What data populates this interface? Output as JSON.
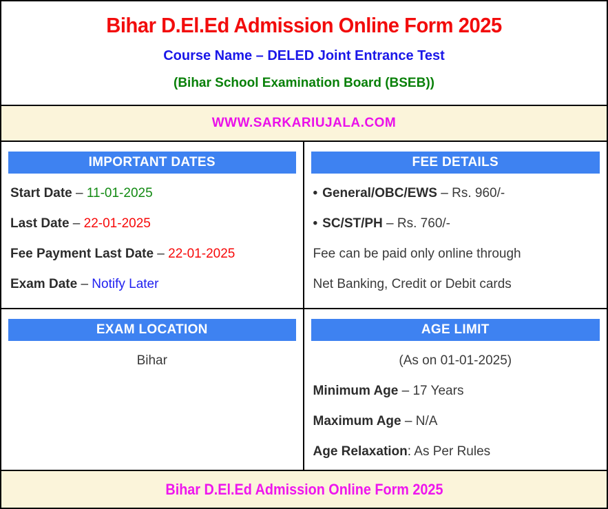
{
  "header": {
    "title": "Bihar D.El.Ed Admission Online Form 2025",
    "course": "Course Name – DELED Joint Entrance Test",
    "board": "(Bihar School Examination Board (BSEB))",
    "website": "WWW.SARKARIUJALA.COM"
  },
  "sections": {
    "important_dates": {
      "header": "IMPORTANT DATES",
      "rows": [
        {
          "label": "Start Date",
          "sep": " – ",
          "value": "11-01-2025"
        },
        {
          "label": "Last Date",
          "sep": " – ",
          "value": "22-01-2025"
        },
        {
          "label": "Fee Payment Last Date",
          "sep": " – ",
          "value": "22-01-2025"
        },
        {
          "label": "Exam Date",
          "sep": " – ",
          "value": "Notify Later"
        }
      ]
    },
    "fee_details": {
      "header": "FEE DETAILS",
      "items": [
        {
          "bullet": "•",
          "label": "General/OBC/EWS",
          "sep": " – ",
          "value": "Rs. 960/-"
        },
        {
          "bullet": "•",
          "label": "SC/ST/PH",
          "sep": " – ",
          "value": "Rs. 760/-"
        }
      ],
      "notes": [
        "Fee can be paid only online through",
        "Net Banking, Credit or Debit cards"
      ]
    },
    "exam_location": {
      "header": "EXAM LOCATION",
      "value": "Bihar"
    },
    "age_limit": {
      "header": "AGE LIMIT",
      "note": "(As on 01-01-2025)",
      "rows": [
        {
          "label": "Minimum Age",
          "sep": " – ",
          "value": "17 Years"
        },
        {
          "label": "Maximum Age",
          "sep": " – ",
          "value": "N/A"
        },
        {
          "label": "Age Relaxation",
          "sep": ": ",
          "value": "As Per Rules"
        }
      ]
    }
  },
  "footer": {
    "text": "Bihar D.El.Ed Admission Online Form 2025"
  },
  "colors": {
    "title_red": "#f20c0c",
    "course_blue": "#1a17e8",
    "board_green": "#088008",
    "website_magenta": "#ea10ea",
    "footer_magenta": "#ee16ee",
    "band_bg": "#fbf4da",
    "accent_blue": "#3e82f1",
    "bar_text": "#ffffff",
    "text_dark": "#3a3a3a",
    "label_dark": "#2c2c2c",
    "date_green": "#128a12",
    "date_red": "#f70909",
    "notify_blue": "#2020f0",
    "border_black": "#000000"
  }
}
